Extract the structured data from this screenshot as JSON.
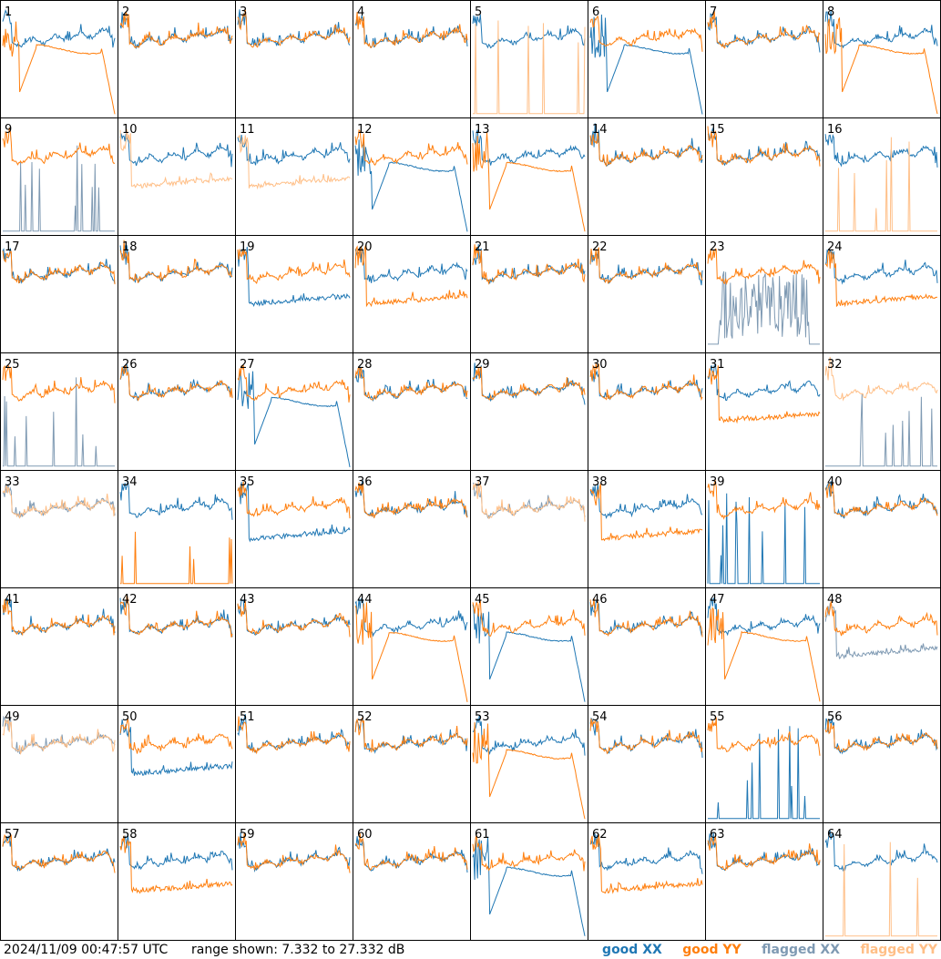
{
  "footer": {
    "timestamp": "2024/11/09 00:47:57 UTC",
    "range": "range shown: 7.332 to 27.332 dB"
  },
  "legend": [
    {
      "label": "good XX",
      "color": "#1f77b4"
    },
    {
      "label": "good YY",
      "color": "#ff7f0e"
    },
    {
      "label": "flagged XX",
      "color": "#7f9ab3"
    },
    {
      "label": "flagged YY",
      "color": "#ffbf87"
    }
  ],
  "chart_data": {
    "type": "line",
    "grid": {
      "rows": 8,
      "cols": 8
    },
    "ylim": [
      7.332,
      27.332
    ],
    "yunit": "dB",
    "series_names": [
      "XX",
      "YY"
    ],
    "panels": [
      {
        "id": 1,
        "xx": "good",
        "yy": "good",
        "shape_xx": "typical",
        "shape_yy": "dropoff"
      },
      {
        "id": 2,
        "xx": "good",
        "yy": "good",
        "shape_xx": "typical",
        "shape_yy": "typical"
      },
      {
        "id": 3,
        "xx": "good",
        "yy": "good",
        "shape_xx": "typical",
        "shape_yy": "typical"
      },
      {
        "id": 4,
        "xx": "good",
        "yy": "good",
        "shape_xx": "typical",
        "shape_yy": "typical"
      },
      {
        "id": 5,
        "xx": "good",
        "yy": "flagged",
        "shape_xx": "typical",
        "shape_yy": "spikes"
      },
      {
        "id": 6,
        "xx": "good",
        "yy": "good",
        "shape_xx": "dropoff",
        "shape_yy": "typical"
      },
      {
        "id": 7,
        "xx": "good",
        "yy": "good",
        "shape_xx": "typical",
        "shape_yy": "typical"
      },
      {
        "id": 8,
        "xx": "good",
        "yy": "good",
        "shape_xx": "typical",
        "shape_yy": "dropoff"
      },
      {
        "id": 9,
        "xx": "flagged",
        "yy": "good",
        "shape_xx": "spikes",
        "shape_yy": "typical"
      },
      {
        "id": 10,
        "xx": "good",
        "yy": "flagged",
        "shape_xx": "typical",
        "shape_yy": "low"
      },
      {
        "id": 11,
        "xx": "good",
        "yy": "flagged",
        "shape_xx": "typical",
        "shape_yy": "low"
      },
      {
        "id": 12,
        "xx": "good",
        "yy": "good",
        "shape_xx": "dropoff",
        "shape_yy": "typical"
      },
      {
        "id": 13,
        "xx": "good",
        "yy": "good",
        "shape_xx": "typical",
        "shape_yy": "dropoff"
      },
      {
        "id": 14,
        "xx": "good",
        "yy": "good",
        "shape_xx": "typical",
        "shape_yy": "typical"
      },
      {
        "id": 15,
        "xx": "good",
        "yy": "good",
        "shape_xx": "typical",
        "shape_yy": "typical"
      },
      {
        "id": 16,
        "xx": "good",
        "yy": "flagged",
        "shape_xx": "typical",
        "shape_yy": "spikes"
      },
      {
        "id": 17,
        "xx": "good",
        "yy": "good",
        "shape_xx": "typical",
        "shape_yy": "typical"
      },
      {
        "id": 18,
        "xx": "good",
        "yy": "good",
        "shape_xx": "typical",
        "shape_yy": "typical"
      },
      {
        "id": 19,
        "xx": "good",
        "yy": "good",
        "shape_xx": "low",
        "shape_yy": "typical"
      },
      {
        "id": 20,
        "xx": "good",
        "yy": "good",
        "shape_xx": "typical",
        "shape_yy": "low"
      },
      {
        "id": 21,
        "xx": "good",
        "yy": "good",
        "shape_xx": "typical",
        "shape_yy": "typical"
      },
      {
        "id": 22,
        "xx": "good",
        "yy": "good",
        "shape_xx": "typical",
        "shape_yy": "typical"
      },
      {
        "id": 23,
        "xx": "flagged",
        "yy": "good",
        "shape_xx": "noisy",
        "shape_yy": "typical"
      },
      {
        "id": 24,
        "xx": "good",
        "yy": "good",
        "shape_xx": "typical",
        "shape_yy": "low"
      },
      {
        "id": 25,
        "xx": "flagged",
        "yy": "good",
        "shape_xx": "spikes",
        "shape_yy": "typical"
      },
      {
        "id": 26,
        "xx": "good",
        "yy": "good",
        "shape_xx": "typical",
        "shape_yy": "typical"
      },
      {
        "id": 27,
        "xx": "good",
        "yy": "good",
        "shape_xx": "dropoff",
        "shape_yy": "typical"
      },
      {
        "id": 28,
        "xx": "good",
        "yy": "good",
        "shape_xx": "typical",
        "shape_yy": "typical"
      },
      {
        "id": 29,
        "xx": "good",
        "yy": "good",
        "shape_xx": "typical",
        "shape_yy": "typical"
      },
      {
        "id": 30,
        "xx": "good",
        "yy": "good",
        "shape_xx": "typical",
        "shape_yy": "typical"
      },
      {
        "id": 31,
        "xx": "good",
        "yy": "good",
        "shape_xx": "typical",
        "shape_yy": "low"
      },
      {
        "id": 32,
        "xx": "flagged",
        "yy": "flagged",
        "shape_xx": "spikes",
        "shape_yy": "typical"
      },
      {
        "id": 33,
        "xx": "flagged",
        "yy": "flagged",
        "shape_xx": "typical",
        "shape_yy": "typical"
      },
      {
        "id": 34,
        "xx": "good",
        "yy": "good",
        "shape_xx": "typical",
        "shape_yy": "spikes"
      },
      {
        "id": 35,
        "xx": "good",
        "yy": "good",
        "shape_xx": "low",
        "shape_yy": "typical"
      },
      {
        "id": 36,
        "xx": "good",
        "yy": "good",
        "shape_xx": "typical",
        "shape_yy": "typical"
      },
      {
        "id": 37,
        "xx": "flagged",
        "yy": "flagged",
        "shape_xx": "typical",
        "shape_yy": "typical"
      },
      {
        "id": 38,
        "xx": "good",
        "yy": "good",
        "shape_xx": "typical",
        "shape_yy": "low"
      },
      {
        "id": 39,
        "xx": "good",
        "yy": "good",
        "shape_xx": "spikes",
        "shape_yy": "typical"
      },
      {
        "id": 40,
        "xx": "good",
        "yy": "good",
        "shape_xx": "typical",
        "shape_yy": "typical"
      },
      {
        "id": 41,
        "xx": "good",
        "yy": "good",
        "shape_xx": "typical",
        "shape_yy": "typical"
      },
      {
        "id": 42,
        "xx": "good",
        "yy": "good",
        "shape_xx": "typical",
        "shape_yy": "typical"
      },
      {
        "id": 43,
        "xx": "good",
        "yy": "good",
        "shape_xx": "typical",
        "shape_yy": "typical"
      },
      {
        "id": 44,
        "xx": "good",
        "yy": "good",
        "shape_xx": "typical",
        "shape_yy": "dropoff"
      },
      {
        "id": 45,
        "xx": "good",
        "yy": "good",
        "shape_xx": "dropoff",
        "shape_yy": "typical"
      },
      {
        "id": 46,
        "xx": "good",
        "yy": "good",
        "shape_xx": "typical",
        "shape_yy": "typical"
      },
      {
        "id": 47,
        "xx": "good",
        "yy": "good",
        "shape_xx": "typical",
        "shape_yy": "dropoff"
      },
      {
        "id": 48,
        "xx": "flagged",
        "yy": "good",
        "shape_xx": "low",
        "shape_yy": "typical"
      },
      {
        "id": 49,
        "xx": "flagged",
        "yy": "flagged",
        "shape_xx": "typical",
        "shape_yy": "typical"
      },
      {
        "id": 50,
        "xx": "good",
        "yy": "good",
        "shape_xx": "low",
        "shape_yy": "typical"
      },
      {
        "id": 51,
        "xx": "good",
        "yy": "good",
        "shape_xx": "typical",
        "shape_yy": "typical"
      },
      {
        "id": 52,
        "xx": "good",
        "yy": "good",
        "shape_xx": "typical",
        "shape_yy": "typical"
      },
      {
        "id": 53,
        "xx": "good",
        "yy": "good",
        "shape_xx": "typical",
        "shape_yy": "dropoff"
      },
      {
        "id": 54,
        "xx": "good",
        "yy": "good",
        "shape_xx": "typical",
        "shape_yy": "typical"
      },
      {
        "id": 55,
        "xx": "good",
        "yy": "good",
        "shape_xx": "spikes",
        "shape_yy": "typical"
      },
      {
        "id": 56,
        "xx": "good",
        "yy": "good",
        "shape_xx": "typical",
        "shape_yy": "typical"
      },
      {
        "id": 57,
        "xx": "good",
        "yy": "good",
        "shape_xx": "typical",
        "shape_yy": "typical"
      },
      {
        "id": 58,
        "xx": "good",
        "yy": "good",
        "shape_xx": "typical",
        "shape_yy": "low"
      },
      {
        "id": 59,
        "xx": "good",
        "yy": "good",
        "shape_xx": "typical",
        "shape_yy": "typical"
      },
      {
        "id": 60,
        "xx": "good",
        "yy": "good",
        "shape_xx": "typical",
        "shape_yy": "typical"
      },
      {
        "id": 61,
        "xx": "good",
        "yy": "good",
        "shape_xx": "dropoff",
        "shape_yy": "typical"
      },
      {
        "id": 62,
        "xx": "good",
        "yy": "good",
        "shape_xx": "typical",
        "shape_yy": "low"
      },
      {
        "id": 63,
        "xx": "good",
        "yy": "good",
        "shape_xx": "typical",
        "shape_yy": "typical"
      },
      {
        "id": 64,
        "xx": "good",
        "yy": "flagged",
        "shape_xx": "typical",
        "shape_yy": "spikes"
      }
    ]
  }
}
